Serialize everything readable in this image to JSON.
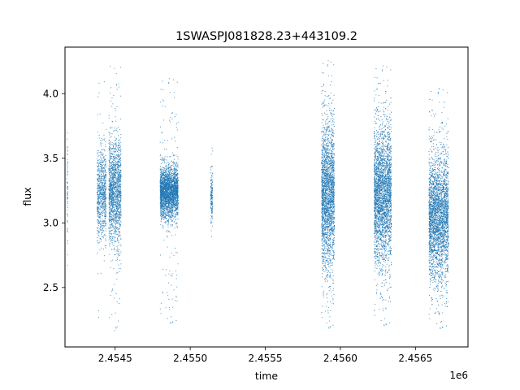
{
  "chart_data": {
    "type": "scatter",
    "title": "1SWASPJ081828.23+443109.2",
    "xlabel": "time",
    "ylabel": "flux",
    "x_offset_label": "1e6",
    "xlim": [
      2454166,
      2456850
    ],
    "ylim": [
      2.04,
      4.36
    ],
    "x_ticks": [
      2454500,
      2455000,
      2455500,
      2456000,
      2456500
    ],
    "x_tick_labels": [
      "2.4545",
      "2.4550",
      "2.4555",
      "2.4560",
      "2.4565"
    ],
    "y_ticks": [
      2.5,
      3.0,
      3.5,
      4.0
    ],
    "y_tick_labels": [
      "2.5",
      "3.0",
      "3.5",
      "4.0"
    ],
    "grid": false,
    "marker_color": "#1f77b4",
    "series": [
      {
        "segments": [
          {
            "t_start": 2454180,
            "t_end": 2454184,
            "center": 3.25,
            "spread": 0.22,
            "min": 2.5,
            "max": 3.92,
            "density": 0.6
          },
          {
            "t_start": 2454380,
            "t_end": 2454440,
            "center": 3.22,
            "spread": 0.18,
            "min": 2.2,
            "max": 4.14,
            "density": 2.0
          },
          {
            "t_start": 2454458,
            "t_end": 2454540,
            "center": 3.24,
            "spread": 0.2,
            "min": 2.16,
            "max": 4.26,
            "density": 3.0
          },
          {
            "t_start": 2454800,
            "t_end": 2454920,
            "center": 3.24,
            "spread": 0.1,
            "min": 2.2,
            "max": 4.14,
            "density": 3.5
          },
          {
            "t_start": 2455136,
            "t_end": 2455150,
            "center": 3.2,
            "spread": 0.1,
            "min": 2.75,
            "max": 3.68,
            "density": 1.2
          },
          {
            "t_start": 2455875,
            "t_end": 2455960,
            "center": 3.22,
            "spread": 0.28,
            "min": 2.16,
            "max": 4.28,
            "density": 4.5
          },
          {
            "t_start": 2456225,
            "t_end": 2456340,
            "center": 3.22,
            "spread": 0.26,
            "min": 2.18,
            "max": 4.24,
            "density": 4.5
          },
          {
            "t_start": 2456590,
            "t_end": 2456720,
            "center": 3.05,
            "spread": 0.24,
            "min": 2.16,
            "max": 4.06,
            "density": 4.0
          }
        ]
      }
    ]
  }
}
